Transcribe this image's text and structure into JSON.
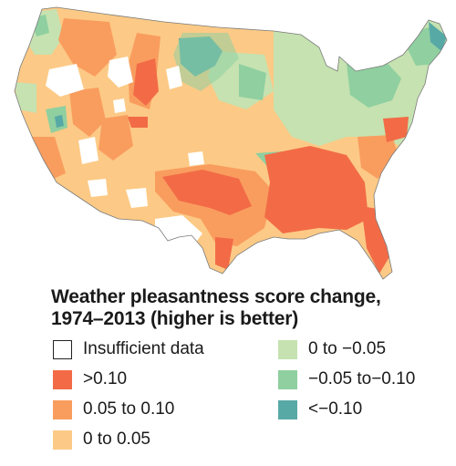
{
  "title_line1": "Weather pleasantness score change,",
  "title_line2": "1974–2013 (higher is better)",
  "legend": [
    {
      "label": "Insufficient data",
      "color": "#ffffff",
      "outline": true
    },
    {
      "label": ">0.10",
      "color": "#f26b46"
    },
    {
      "label": "0.05 to 0.10",
      "color": "#f99d5f"
    },
    {
      "label": "0 to 0.05",
      "color": "#fcca86"
    },
    {
      "label": "0 to −0.05",
      "color": "#c5e2b0"
    },
    {
      "label": "−0.05 to−0.10",
      "color": "#8fcfa0"
    },
    {
      "label": "<−0.10",
      "color": "#57a9a6"
    }
  ]
}
